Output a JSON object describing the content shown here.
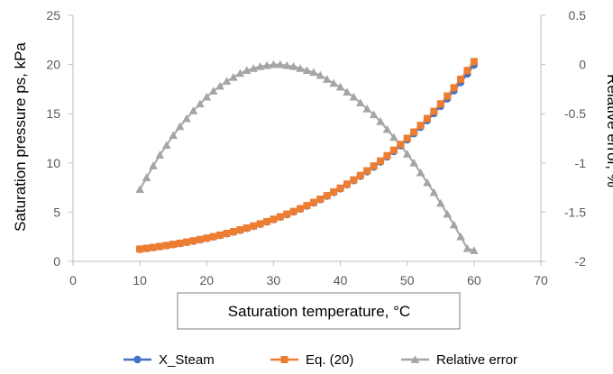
{
  "chart_data": {
    "type": "line",
    "title": "",
    "xlabel": "Saturation temperature, °C",
    "ylabel": "Saturation pressure ps, kPa",
    "y2label": "Relative error, %",
    "xlim": [
      0,
      70
    ],
    "ylim": [
      0,
      25
    ],
    "y2lim": [
      -2,
      0.5
    ],
    "x_ticks": [
      "0",
      "10",
      "20",
      "30",
      "40",
      "50",
      "60",
      "70"
    ],
    "y_ticks": [
      "0",
      "5",
      "10",
      "15",
      "20",
      "25"
    ],
    "y2_ticks": [
      "-2",
      "-1.5",
      "-1",
      "-0.5",
      "0",
      "0.5"
    ],
    "grid": false,
    "legend_position": "bottom",
    "x": [
      10,
      11,
      12,
      13,
      14,
      15,
      16,
      17,
      18,
      19,
      20,
      21,
      22,
      23,
      24,
      25,
      26,
      27,
      28,
      29,
      30,
      31,
      32,
      33,
      34,
      35,
      36,
      37,
      38,
      39,
      40,
      41,
      42,
      43,
      44,
      45,
      46,
      47,
      48,
      49,
      50,
      51,
      52,
      53,
      54,
      55,
      56,
      57,
      58,
      59,
      60
    ],
    "series": [
      {
        "name": "X_Steam",
        "axis": "left",
        "marker": "circle",
        "color": "#4472C4",
        "values": [
          1.23,
          1.31,
          1.4,
          1.5,
          1.6,
          1.71,
          1.82,
          1.94,
          2.06,
          2.2,
          2.34,
          2.49,
          2.64,
          2.81,
          2.98,
          3.17,
          3.36,
          3.57,
          3.78,
          4.01,
          4.25,
          4.5,
          4.76,
          5.03,
          5.32,
          5.63,
          5.95,
          6.28,
          6.63,
          7.0,
          7.38,
          7.79,
          8.21,
          8.65,
          9.11,
          9.59,
          10.1,
          10.62,
          11.17,
          11.75,
          12.35,
          12.98,
          13.63,
          14.31,
          15.02,
          15.76,
          16.53,
          17.34,
          18.17,
          19.04,
          19.95
        ]
      },
      {
        "name": "Eq. (20)",
        "axis": "left",
        "marker": "square",
        "color": "#ED7D31",
        "values": [
          1.25,
          1.33,
          1.42,
          1.52,
          1.62,
          1.73,
          1.84,
          1.96,
          2.09,
          2.22,
          2.36,
          2.51,
          2.67,
          2.84,
          3.01,
          3.2,
          3.39,
          3.6,
          3.81,
          4.04,
          4.28,
          4.53,
          4.8,
          5.07,
          5.36,
          5.67,
          5.99,
          6.32,
          6.68,
          7.05,
          7.44,
          7.85,
          8.28,
          8.73,
          9.2,
          9.69,
          10.2,
          10.74,
          11.3,
          11.88,
          12.5,
          13.14,
          13.81,
          14.51,
          15.24,
          16.0,
          16.8,
          17.64,
          18.5,
          19.4,
          20.3
        ]
      },
      {
        "name": "Relative error",
        "axis": "right",
        "marker": "triangle",
        "color": "#A5A5A5",
        "values": [
          -1.27,
          -1.15,
          -1.03,
          -0.92,
          -0.82,
          -0.72,
          -0.63,
          -0.55,
          -0.47,
          -0.4,
          -0.33,
          -0.27,
          -0.22,
          -0.17,
          -0.13,
          -0.09,
          -0.06,
          -0.04,
          -0.02,
          -0.01,
          0.0,
          0.0,
          -0.01,
          -0.02,
          -0.04,
          -0.06,
          -0.08,
          -0.11,
          -0.15,
          -0.19,
          -0.23,
          -0.28,
          -0.33,
          -0.39,
          -0.45,
          -0.51,
          -0.58,
          -0.66,
          -0.74,
          -0.82,
          -0.91,
          -1.0,
          -1.1,
          -1.2,
          -1.3,
          -1.41,
          -1.52,
          -1.63,
          -1.75,
          -1.87,
          -1.89
        ]
      }
    ]
  }
}
